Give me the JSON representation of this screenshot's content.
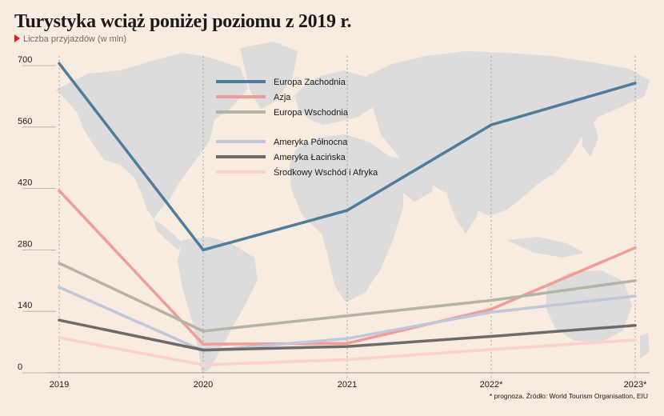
{
  "title": "Turystyka wciąż poniżej poziomu z 2019 r.",
  "subtitle": "Liczba przyjazdów (w mln)",
  "footnote": "* prognoza. Źródło: World Tourism Organisation, EIU",
  "colors": {
    "background": "#f8ebdf",
    "map": "#dcdcdc",
    "marker": "#d81f1f"
  },
  "chart_data": {
    "type": "line",
    "x": [
      "2019",
      "2020",
      "2021",
      "2022*",
      "2023*"
    ],
    "ylim": [
      0,
      700
    ],
    "yticks": [
      "0",
      "140",
      "280",
      "420",
      "560",
      "700"
    ],
    "grid": "vertical dashed",
    "legend": "top-center",
    "series": [
      {
        "name": "Europa Zachodnia",
        "color": "#4e7c9b",
        "values": [
          705,
          280,
          370,
          565,
          660
        ]
      },
      {
        "name": "Azja",
        "color": "#f29b97",
        "values": [
          415,
          65,
          67,
          145,
          285
        ]
      },
      {
        "name": "Europa Wschodnia",
        "color": "#b4b3a6",
        "values": [
          250,
          95,
          130,
          165,
          210
        ]
      },
      {
        "name": "Ameryka Północna",
        "color": "#bfc7d8",
        "values": [
          195,
          50,
          78,
          138,
          175
        ]
      },
      {
        "name": "Ameryka Łacińska",
        "color": "#6b6b6b",
        "values": [
          120,
          52,
          60,
          83,
          108
        ]
      },
      {
        "name": "Środkowy Wschód i Afryka",
        "color": "#fcd0cc",
        "values": [
          80,
          18,
          30,
          53,
          75
        ]
      }
    ]
  }
}
